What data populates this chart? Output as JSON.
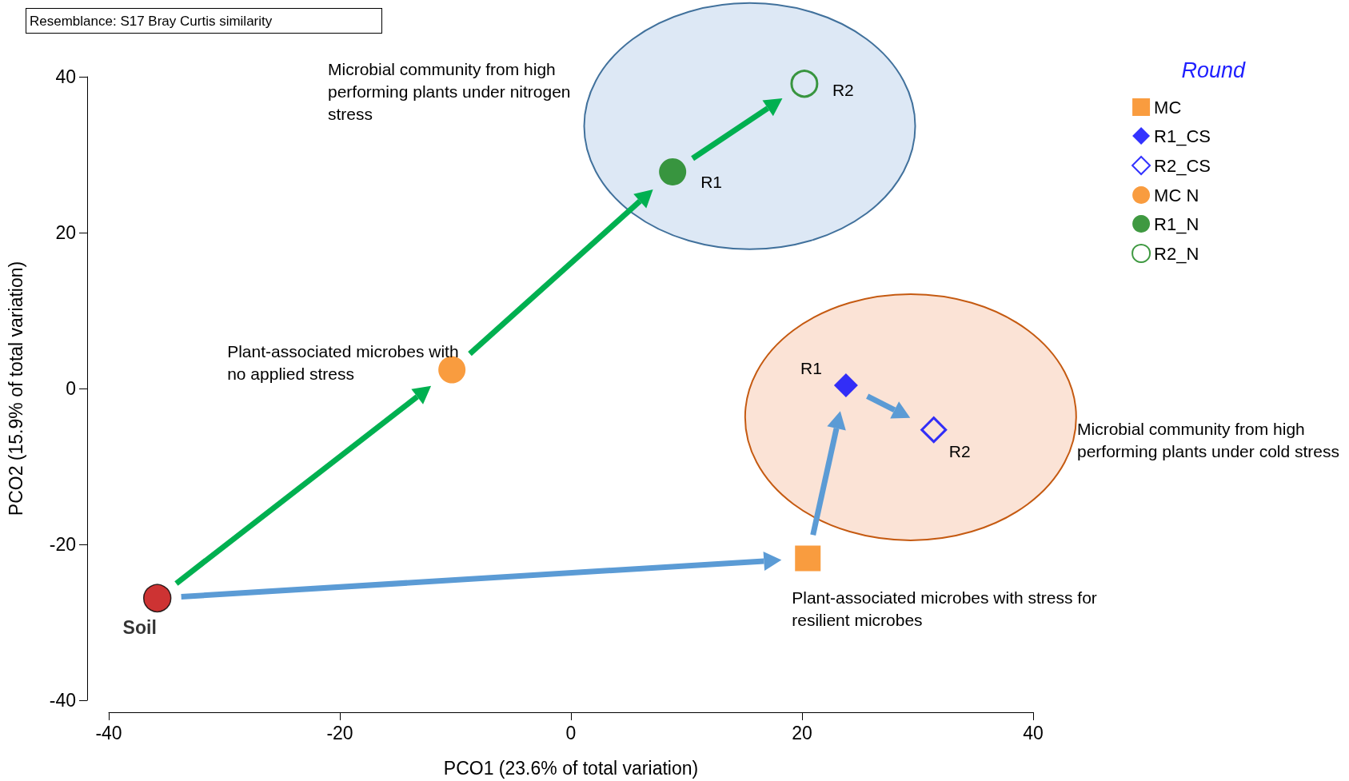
{
  "chart_data": {
    "type": "scatter",
    "xlabel": "PCO1 (23.6% of total variation)",
    "ylabel": "PCO2 (15.9% of total variation)",
    "legend_title": "Round",
    "legend": "top right",
    "grid": false,
    "xlim": [
      -40,
      40
    ],
    "xticks": [
      -40,
      -20,
      0,
      20,
      40
    ],
    "ylim": [
      -40,
      40
    ],
    "yticks": [
      -40,
      -20,
      0,
      20,
      40
    ],
    "annotations": [
      "Resemblance: S17 Bray Curtis similarity",
      "Microbial community from high performing plants under nitrogen stress",
      {
        "text": "Plant-associated microbes with no applied stress",
        "x": -10.3,
        "y": 2.4
      },
      "Microbial community from high performing plants under cold stress",
      {
        "text": "Plant-associated microbes with stress for resilient microbes",
        "x": 20.5,
        "y": -21.8
      },
      {
        "text": "R1",
        "x": 8.8,
        "y": 27.8
      },
      {
        "text": "R2",
        "x": 20.2,
        "y": 39.1
      },
      {
        "text": "R1",
        "x": 23.8,
        "y": 0.4
      },
      {
        "text": "R2",
        "x": 31.4,
        "y": -5.3
      }
    ],
    "series": [
      {
        "name": "Soil",
        "color": "#c00000",
        "marker": "circle",
        "x": [
          -35.8
        ],
        "values": [
          -26.9
        ]
      },
      {
        "name": "MC",
        "color": "#f7830f",
        "marker": "square",
        "x": [
          20.5
        ],
        "values": [
          -21.8
        ]
      },
      {
        "name": "R1_CS",
        "color": "#0000ff",
        "marker": "diamond",
        "x": [
          23.8
        ],
        "values": [
          0.4
        ]
      },
      {
        "name": "R2_CS",
        "color": "#0000ff",
        "marker": "diamond-open",
        "x": [
          31.4
        ],
        "values": [
          -5.3
        ]
      },
      {
        "name": "MC N",
        "color": "#f7830f",
        "marker": "circle",
        "x": [
          -10.3
        ],
        "values": [
          2.4
        ]
      },
      {
        "name": "R1_N",
        "color": "#0f7f12",
        "marker": "circle",
        "x": [
          8.8
        ],
        "values": [
          27.8
        ]
      },
      {
        "name": "R2_N",
        "color": "#0f7f12",
        "marker": "circle-open",
        "x": [
          20.2
        ],
        "values": [
          39.1
        ]
      }
    ]
  }
}
